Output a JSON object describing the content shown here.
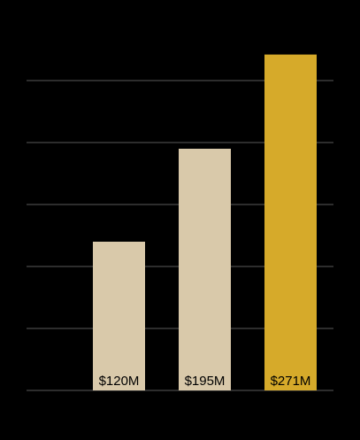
{
  "chart_data": {
    "type": "bar",
    "values": [
      120,
      195,
      271
    ],
    "value_labels": [
      "$120M",
      "$195M",
      "$271M"
    ],
    "colors": [
      "#d9c9aa",
      "#d9c9aa",
      "#d6aa2a"
    ],
    "ylim": [
      0,
      300
    ],
    "yticks": [
      0,
      50,
      100,
      150,
      200,
      250
    ],
    "grid": true
  }
}
